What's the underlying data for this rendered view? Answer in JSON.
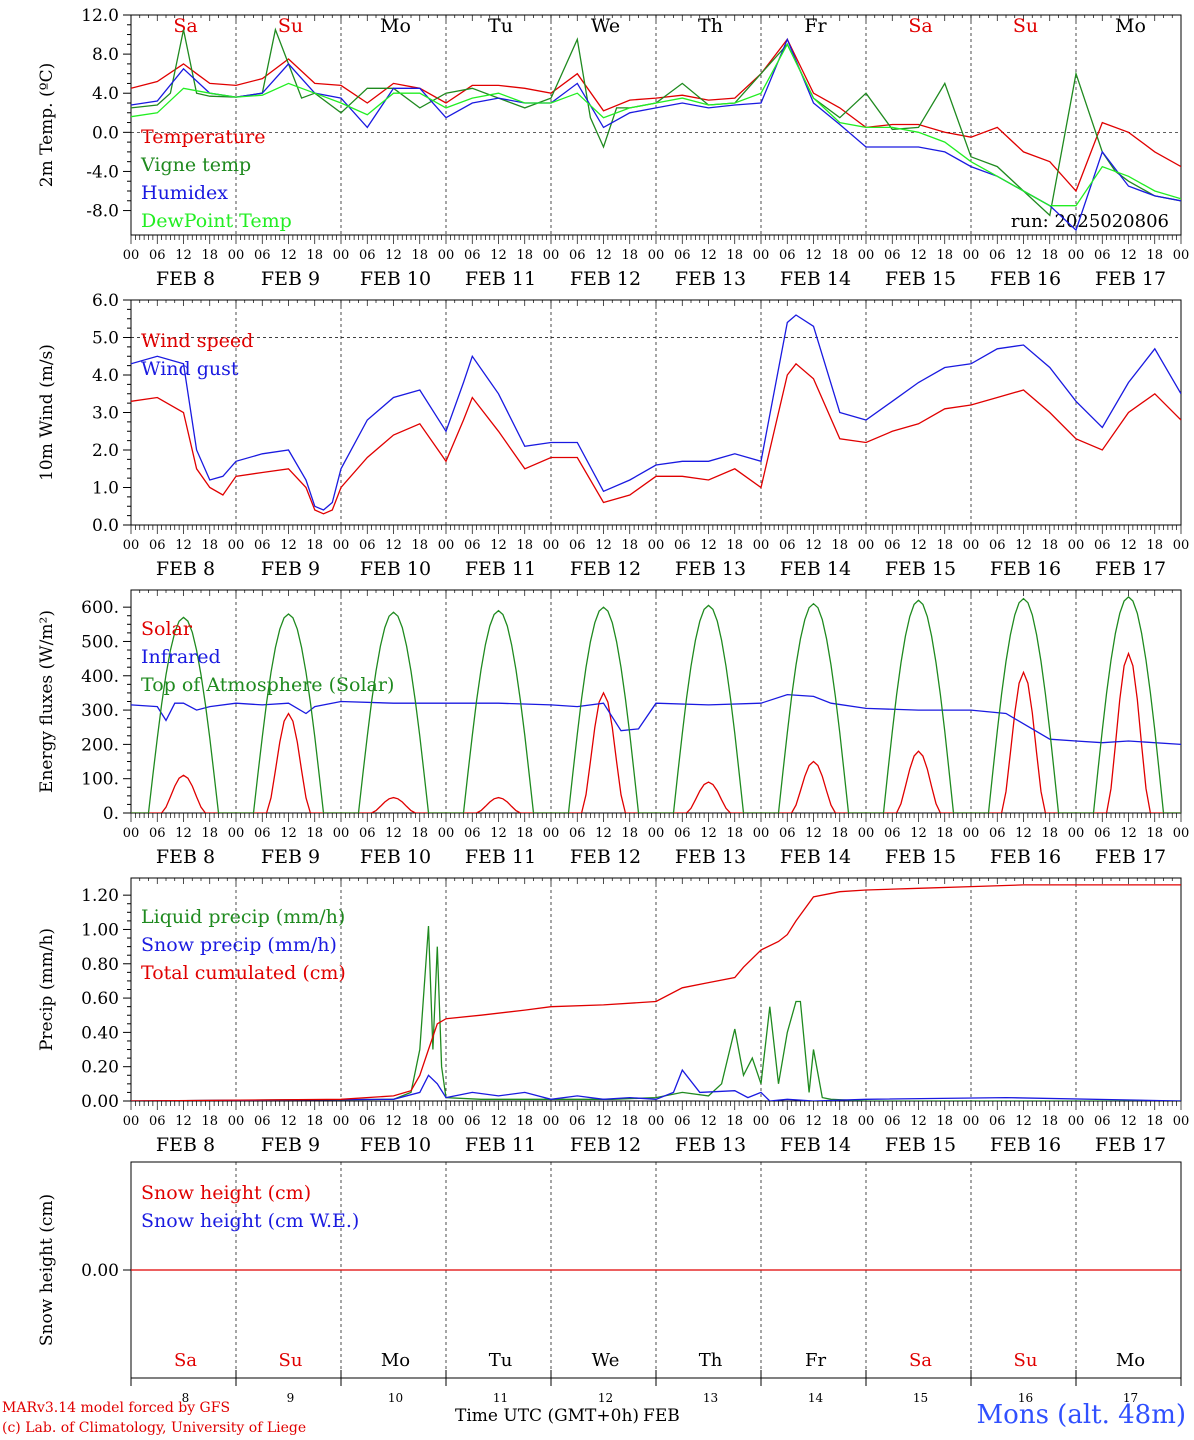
{
  "run_label": "run: 2025020806",
  "footer": {
    "model": "MARv3.14 model forced by GFS",
    "credit": "(c) Lab. of Climatology, University of Liege",
    "time_axis": "Time UTC (GMT+0h)",
    "month": "FEB",
    "station": "Mons (alt. 48m)"
  },
  "colors": {
    "red": "#e00000",
    "green": "#1f8a1f",
    "blue": "#1a1ae0",
    "lightgreen": "#22ee22"
  },
  "days": {
    "weekday": [
      "Sa",
      "Su",
      "Mo",
      "Tu",
      "We",
      "Th",
      "Fr",
      "Sa",
      "Su",
      "Mo"
    ],
    "weekend": [
      true,
      true,
      false,
      false,
      false,
      false,
      false,
      true,
      true,
      false
    ],
    "date_labels": [
      "FEB  8",
      "FEB  9",
      "FEB 10",
      "FEB 11",
      "FEB 12",
      "FEB 13",
      "FEB 14",
      "FEB 15",
      "FEB 16",
      "FEB 17"
    ],
    "day_numbers": [
      "8",
      "9",
      "10",
      "11",
      "12",
      "13",
      "14",
      "15",
      "16",
      "17"
    ],
    "hour_ticks": [
      "00",
      "06",
      "12",
      "18"
    ]
  },
  "chart_data": [
    {
      "type": "line",
      "ylabel": "2m Temp. (ºC)",
      "ylim": [
        -10.5,
        12
      ],
      "yticks": [
        -8,
        -4,
        0,
        4,
        8,
        12
      ],
      "ytick_labels": [
        "-8.0",
        "-4.0",
        "0.0",
        "4.0",
        "8.0",
        "12.0"
      ],
      "ref_line": 0,
      "x_unit": "hours since FEB 8 00 UTC",
      "series": [
        {
          "name": "Temperature",
          "color": "#e00000",
          "x": [
            0,
            6,
            12,
            15,
            18,
            24,
            30,
            36,
            42,
            48,
            54,
            60,
            66,
            72,
            78,
            84,
            90,
            96,
            102,
            108,
            114,
            120,
            126,
            132,
            138,
            144,
            150,
            156,
            162,
            168,
            174,
            180,
            186,
            192,
            198,
            204,
            210,
            216,
            222,
            228,
            234,
            240
          ],
          "y": [
            4.5,
            5.2,
            7.0,
            6.0,
            5.0,
            4.8,
            5.5,
            7.5,
            5.0,
            4.8,
            3.0,
            5.0,
            4.5,
            3.0,
            4.8,
            4.8,
            4.5,
            4.0,
            6.0,
            2.2,
            3.3,
            3.5,
            3.8,
            3.3,
            3.5,
            6.0,
            9.5,
            4.0,
            2.5,
            0.5,
            0.8,
            0.8,
            0.0,
            -0.5,
            0.5,
            -2.0,
            -3.0,
            -6.0,
            1.0,
            0.0,
            -2.0,
            -3.5
          ]
        },
        {
          "name": "Vigne temp",
          "color": "#1f8a1f",
          "x": [
            0,
            6,
            9,
            12,
            15,
            18,
            24,
            30,
            33,
            36,
            39,
            42,
            48,
            54,
            60,
            66,
            72,
            78,
            84,
            90,
            96,
            102,
            105,
            108,
            111,
            114,
            120,
            126,
            132,
            138,
            144,
            150,
            156,
            162,
            168,
            174,
            180,
            186,
            192,
            198,
            204,
            210,
            216,
            222,
            225,
            228,
            234,
            240
          ],
          "y": [
            2.5,
            2.8,
            4.0,
            10.5,
            4.0,
            3.7,
            3.6,
            4.0,
            10.5,
            7.0,
            3.5,
            4.0,
            2.0,
            4.5,
            4.5,
            2.5,
            4.0,
            4.5,
            3.5,
            2.5,
            3.5,
            9.5,
            1.5,
            -1.5,
            2.5,
            2.5,
            3.0,
            5.0,
            2.8,
            3.0,
            6.0,
            9.0,
            3.5,
            1.5,
            4.0,
            0.3,
            0.5,
            5.0,
            -2.5,
            -3.5,
            -6.0,
            -8.5,
            6.0,
            -2.0,
            -4.0,
            -5.0,
            -6.5,
            -7.0
          ]
        },
        {
          "name": "Humidex",
          "color": "#1a1ae0",
          "x": [
            0,
            6,
            12,
            18,
            24,
            30,
            36,
            42,
            48,
            54,
            60,
            66,
            72,
            78,
            84,
            90,
            96,
            102,
            108,
            114,
            120,
            126,
            132,
            138,
            144,
            150,
            156,
            162,
            168,
            174,
            180,
            186,
            192,
            198,
            204,
            210,
            216,
            222,
            228,
            234,
            240
          ],
          "y": [
            2.8,
            3.2,
            6.5,
            4.0,
            3.6,
            4.0,
            7.0,
            4.0,
            3.5,
            0.5,
            4.5,
            4.5,
            1.5,
            3.0,
            3.5,
            3.0,
            3.0,
            5.0,
            0.5,
            2.0,
            2.5,
            3.0,
            2.5,
            2.8,
            3.0,
            9.5,
            3.0,
            0.8,
            -1.5,
            -1.5,
            -1.5,
            -2.0,
            -3.5,
            -4.5,
            -6.0,
            -7.5,
            -10.0,
            -2.0,
            -5.5,
            -6.5,
            -7.0
          ]
        },
        {
          "name": "DewPoint Temp",
          "color": "#22ee22",
          "x": [
            0,
            6,
            12,
            18,
            24,
            30,
            36,
            42,
            48,
            54,
            60,
            66,
            72,
            78,
            84,
            90,
            96,
            102,
            108,
            114,
            120,
            126,
            132,
            138,
            144,
            150,
            156,
            162,
            168,
            174,
            180,
            186,
            192,
            198,
            204,
            210,
            216,
            222,
            228,
            234,
            240
          ],
          "y": [
            1.6,
            2.0,
            4.5,
            4.0,
            3.6,
            3.8,
            5.0,
            4.0,
            3.0,
            1.8,
            4.0,
            4.0,
            2.5,
            3.5,
            4.0,
            3.0,
            3.0,
            4.0,
            1.5,
            2.5,
            3.0,
            3.5,
            2.8,
            3.0,
            4.0,
            9.0,
            3.5,
            1.0,
            0.5,
            0.5,
            0.0,
            -1.0,
            -3.0,
            -4.5,
            -6.0,
            -7.5,
            -7.5,
            -3.5,
            -4.5,
            -6.0,
            -6.8
          ]
        }
      ]
    },
    {
      "type": "line",
      "ylabel": "10m Wind (m/s)",
      "ylim": [
        0,
        6
      ],
      "yticks": [
        0,
        1,
        2,
        3,
        4,
        5,
        6
      ],
      "ytick_labels": [
        "0.0",
        "1.0",
        "2.0",
        "3.0",
        "4.0",
        "5.0",
        "6.0"
      ],
      "ref_line": 5,
      "x_unit": "hours since FEB 8 00 UTC",
      "series": [
        {
          "name": "Wind speed",
          "color": "#e00000",
          "x": [
            0,
            6,
            12,
            15,
            18,
            21,
            24,
            30,
            36,
            40,
            42,
            44,
            46,
            48,
            54,
            60,
            66,
            72,
            76,
            78,
            84,
            90,
            96,
            102,
            108,
            114,
            120,
            126,
            132,
            138,
            144,
            150,
            152,
            156,
            162,
            168,
            174,
            180,
            186,
            192,
            198,
            204,
            210,
            216,
            222,
            228,
            234,
            240
          ],
          "y": [
            3.3,
            3.4,
            3.0,
            1.5,
            1.0,
            0.8,
            1.3,
            1.4,
            1.5,
            1.0,
            0.4,
            0.3,
            0.4,
            1.0,
            1.8,
            2.4,
            2.7,
            1.7,
            2.8,
            3.4,
            2.5,
            1.5,
            1.8,
            1.8,
            0.6,
            0.8,
            1.3,
            1.3,
            1.2,
            1.5,
            1.0,
            4.0,
            4.3,
            3.9,
            2.3,
            2.2,
            2.5,
            2.7,
            3.1,
            3.2,
            3.4,
            3.6,
            3.0,
            2.3,
            2.0,
            3.0,
            3.5,
            2.8
          ]
        },
        {
          "name": "Wind gust",
          "color": "#1a1ae0",
          "x": [
            0,
            6,
            12,
            15,
            18,
            21,
            24,
            30,
            36,
            40,
            42,
            44,
            46,
            48,
            54,
            60,
            66,
            72,
            76,
            78,
            84,
            90,
            96,
            102,
            108,
            114,
            120,
            126,
            132,
            138,
            144,
            150,
            152,
            156,
            162,
            168,
            174,
            180,
            186,
            192,
            198,
            204,
            210,
            216,
            222,
            228,
            234,
            240
          ],
          "y": [
            4.3,
            4.5,
            4.3,
            2.0,
            1.2,
            1.3,
            1.7,
            1.9,
            2.0,
            1.2,
            0.5,
            0.4,
            0.6,
            1.5,
            2.8,
            3.4,
            3.6,
            2.5,
            3.8,
            4.5,
            3.5,
            2.1,
            2.2,
            2.2,
            0.9,
            1.2,
            1.6,
            1.7,
            1.7,
            1.9,
            1.7,
            5.4,
            5.6,
            5.3,
            3.0,
            2.8,
            3.3,
            3.8,
            4.2,
            4.3,
            4.7,
            4.8,
            4.2,
            3.3,
            2.6,
            3.8,
            4.7,
            3.5
          ]
        }
      ]
    },
    {
      "type": "line",
      "ylabel": "Energy fluxes (W/m²)",
      "ylim": [
        0,
        650
      ],
      "yticks": [
        0,
        100,
        200,
        300,
        400,
        500,
        600
      ],
      "ytick_labels": [
        "0.",
        "100.",
        "200.",
        "300.",
        "400.",
        "500.",
        "600."
      ],
      "x_unit": "hours since FEB 8 00 UTC",
      "series": [
        {
          "name": "Solar",
          "color": "#e00000",
          "day_peaks": [
            110,
            290,
            45,
            45,
            350,
            90,
            150,
            180,
            410,
            465
          ]
        },
        {
          "name": "Infrared",
          "color": "#1a1ae0",
          "x": [
            0,
            6,
            8,
            10,
            12,
            15,
            18,
            24,
            30,
            36,
            40,
            42,
            48,
            60,
            72,
            84,
            96,
            102,
            108,
            112,
            116,
            120,
            132,
            144,
            150,
            156,
            160,
            168,
            180,
            192,
            200,
            210,
            216,
            222,
            228,
            240
          ],
          "y": [
            315,
            310,
            270,
            320,
            320,
            300,
            310,
            320,
            315,
            320,
            290,
            310,
            325,
            320,
            320,
            320,
            315,
            310,
            320,
            240,
            245,
            320,
            315,
            320,
            345,
            340,
            320,
            305,
            300,
            300,
            290,
            215,
            210,
            205,
            210,
            200
          ]
        },
        {
          "name": "Top of Atmosphere (Solar)",
          "color": "#1f8a1f",
          "day_peaks": [
            570,
            580,
            585,
            590,
            600,
            605,
            610,
            620,
            625,
            630
          ]
        }
      ]
    },
    {
      "type": "line",
      "ylabel": "Precip (mm/h)",
      "ylim": [
        0,
        1.3
      ],
      "yticks": [
        0,
        0.2,
        0.4,
        0.6,
        0.8,
        1.0,
        1.2
      ],
      "ytick_labels": [
        "0.00",
        "0.20",
        "0.40",
        "0.60",
        "0.80",
        "1.00",
        "1.20"
      ],
      "x_unit": "hours since FEB 8 00 UTC",
      "series": [
        {
          "name": "Liquid precip (mm/h)",
          "color": "#1f8a1f",
          "x": [
            0,
            60,
            64,
            66,
            68,
            69,
            70,
            71,
            72,
            80,
            96,
            110,
            120,
            126,
            132,
            135,
            138,
            140,
            142,
            144,
            146,
            148,
            150,
            152,
            153,
            155,
            156,
            158,
            160,
            168,
            240
          ],
          "y": [
            0,
            0.01,
            0.05,
            0.3,
            1.02,
            0.3,
            0.9,
            0.2,
            0.02,
            0.01,
            0.01,
            0.01,
            0.02,
            0.05,
            0.03,
            0.1,
            0.42,
            0.15,
            0.25,
            0.1,
            0.55,
            0.1,
            0.4,
            0.58,
            0.58,
            0.05,
            0.3,
            0.02,
            0.01,
            0.0,
            0.0
          ]
        },
        {
          "name": "Snow precip (mm/h)",
          "color": "#1a1ae0",
          "x": [
            0,
            60,
            66,
            68,
            70,
            72,
            78,
            84,
            90,
            96,
            102,
            108,
            114,
            120,
            124,
            126,
            130,
            138,
            141,
            144,
            146,
            150,
            156,
            168,
            200,
            240
          ],
          "y": [
            0,
            0.01,
            0.05,
            0.15,
            0.1,
            0.02,
            0.05,
            0.03,
            0.05,
            0.01,
            0.03,
            0.01,
            0.02,
            0.01,
            0.05,
            0.18,
            0.05,
            0.06,
            0.02,
            0.05,
            0.0,
            0.01,
            0.0,
            0.01,
            0.02,
            0.0
          ]
        },
        {
          "name": "Total cumulated (cm)",
          "color": "#e00000",
          "x": [
            0,
            48,
            60,
            64,
            66,
            68,
            70,
            72,
            80,
            90,
            96,
            108,
            120,
            126,
            132,
            138,
            140,
            144,
            148,
            150,
            152,
            156,
            162,
            168,
            180,
            192,
            204,
            216,
            228,
            240
          ],
          "y": [
            0.0,
            0.01,
            0.03,
            0.06,
            0.15,
            0.3,
            0.45,
            0.48,
            0.5,
            0.53,
            0.55,
            0.56,
            0.58,
            0.66,
            0.69,
            0.72,
            0.78,
            0.88,
            0.93,
            0.97,
            1.05,
            1.19,
            1.22,
            1.23,
            1.24,
            1.25,
            1.26,
            1.26,
            1.26,
            1.26
          ]
        }
      ]
    },
    {
      "type": "line",
      "ylabel": "Snow height (cm)",
      "ylim": [
        -1,
        1
      ],
      "yticks": [
        0
      ],
      "ytick_labels": [
        "0.00"
      ],
      "x_unit": "hours since FEB 8 00 UTC",
      "series": [
        {
          "name": "Snow height (cm)",
          "color": "#e00000",
          "x": [
            0,
            240
          ],
          "y": [
            0,
            0
          ]
        },
        {
          "name": "Snow height (cm W.E.)",
          "color": "#1a1ae0",
          "x": [],
          "y": []
        }
      ]
    }
  ]
}
